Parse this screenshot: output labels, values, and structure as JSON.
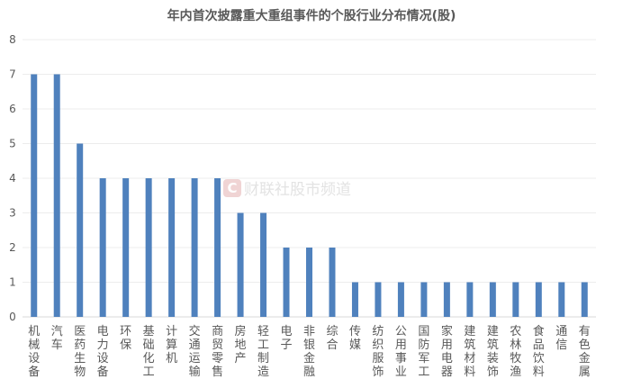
{
  "chart_data": {
    "type": "bar",
    "title": "年内首次披露重大重组事件的个股行业分布情况(股)",
    "categories": [
      "机械设备",
      "汽车",
      "医药生物",
      "电力设备",
      "环保",
      "基础化工",
      "计算机",
      "交通运输",
      "商贸零售",
      "房地产",
      "轻工制造",
      "电子",
      "非银金融",
      "综合",
      "传媒",
      "纺织服饰",
      "公用事业",
      "国防军工",
      "家用电器",
      "建筑材料",
      "建筑装饰",
      "农林牧渔",
      "食品饮料",
      "通信",
      "有色金属"
    ],
    "values": [
      7,
      7,
      5,
      4,
      4,
      4,
      4,
      4,
      4,
      3,
      3,
      2,
      2,
      2,
      1,
      1,
      1,
      1,
      1,
      1,
      1,
      1,
      1,
      1,
      1
    ],
    "xlabel": "",
    "ylabel": "",
    "ylim": [
      0,
      8
    ],
    "yticks": [
      0,
      1,
      2,
      3,
      4,
      5,
      6,
      7,
      8
    ],
    "grid": true,
    "bar_color": "#4f81bd"
  },
  "watermark": "财联社股市频道"
}
